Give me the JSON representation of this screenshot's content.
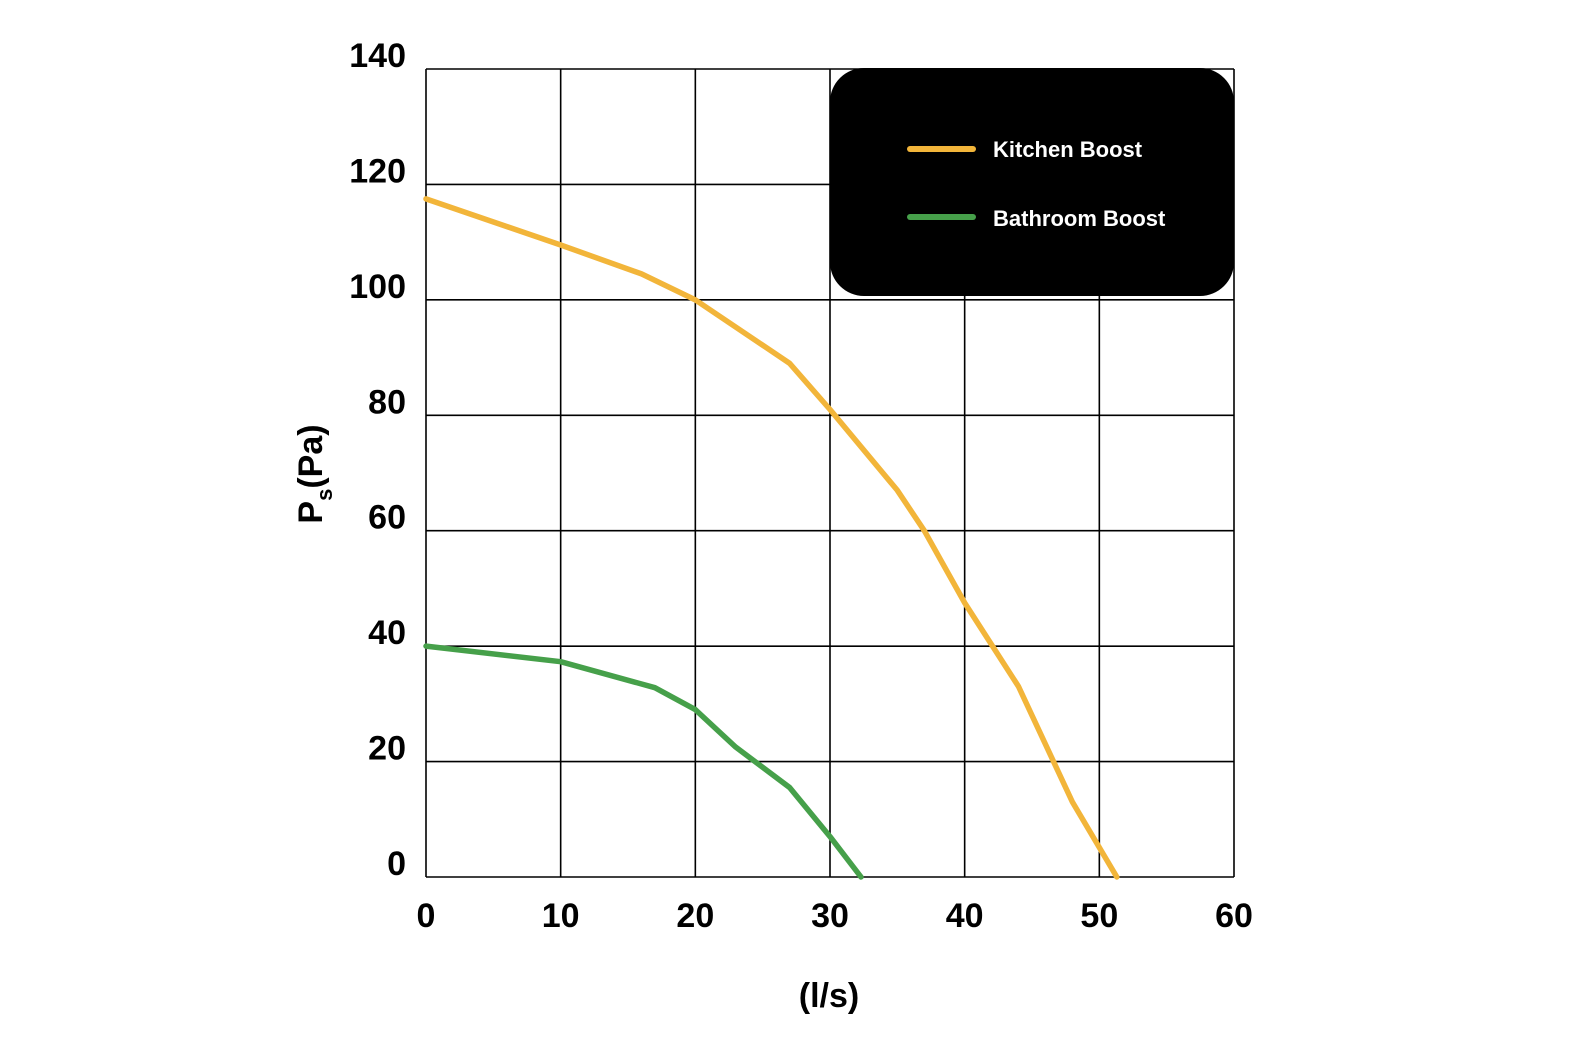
{
  "chart_data": {
    "type": "line",
    "title": "",
    "xlabel": "(l/s)",
    "ylabel": {
      "main": "P",
      "sub": "s",
      "unit": "(Pa)"
    },
    "xlim": [
      0,
      60
    ],
    "ylim": [
      0,
      140
    ],
    "x_ticks": [
      "0",
      "10",
      "20",
      "30",
      "40",
      "50",
      "60"
    ],
    "y_ticks": [
      "0",
      "20",
      "40",
      "60",
      "80",
      "100",
      "120",
      "140"
    ],
    "x_tick_values": [
      0,
      10,
      20,
      30,
      40,
      50,
      60
    ],
    "y_tick_values": [
      0,
      20,
      40,
      60,
      80,
      100,
      120,
      140
    ],
    "grid": true,
    "legend": {
      "placement": "top-right",
      "background": "#000000"
    },
    "series": [
      {
        "name": "Kitchen Boost",
        "color": "#F2B53A",
        "points": [
          [
            0,
            117.5
          ],
          [
            10,
            109.5
          ],
          [
            16,
            104.5
          ],
          [
            20,
            100
          ],
          [
            27,
            89
          ],
          [
            30,
            81
          ],
          [
            35,
            67
          ],
          [
            37,
            60
          ],
          [
            40,
            47.5
          ],
          [
            44,
            33
          ],
          [
            48,
            13
          ],
          [
            51.3,
            0
          ]
        ]
      },
      {
        "name": "Bathroom Boost",
        "color": "#46A04A",
        "points": [
          [
            0,
            40
          ],
          [
            10,
            37.3
          ],
          [
            17,
            32.8
          ],
          [
            20,
            29
          ],
          [
            23,
            22.5
          ],
          [
            27,
            15.5
          ],
          [
            30,
            7
          ],
          [
            32.3,
            0
          ]
        ]
      }
    ]
  }
}
